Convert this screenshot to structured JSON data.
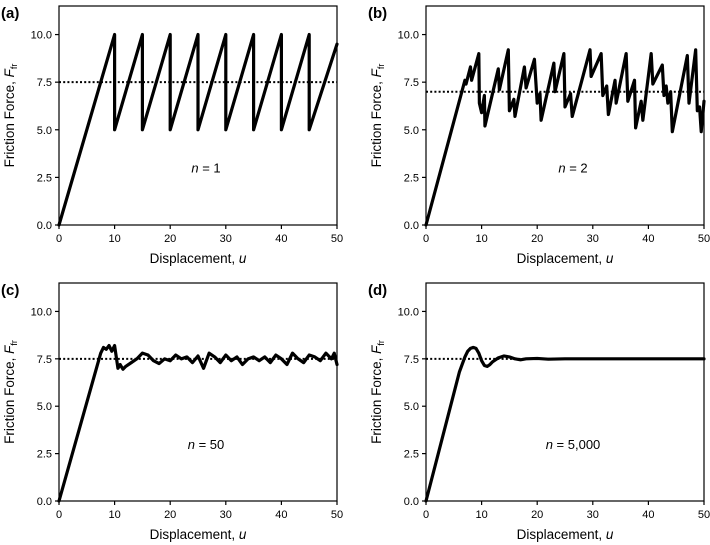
{
  "chart_data": [
    {
      "type": "line",
      "panel_label": "(a)",
      "annotation": {
        "prefix": "n",
        "text": " = 1"
      },
      "xlabel": "Displacement, ",
      "xlabel_var": "u",
      "ylabel": "Friction Force, ",
      "ylabel_var": "F",
      "ylabel_sub": "fr",
      "xlim": [
        0,
        50
      ],
      "ylim": [
        0,
        11.5
      ],
      "xticks": [
        0,
        10,
        20,
        30,
        40,
        50
      ],
      "yticks": [
        "0.0",
        "2.5",
        "5.0",
        "7.5",
        "10.0"
      ],
      "reference_line": 7.5,
      "series": [
        {
          "name": "n = 1",
          "x": [
            0,
            10,
            10,
            15,
            15,
            20,
            20,
            25,
            25,
            30,
            30,
            35,
            35,
            40,
            40,
            45,
            45,
            50
          ],
          "y": [
            0,
            10,
            5,
            10,
            5,
            10,
            5,
            10,
            5,
            10,
            5,
            10,
            5,
            10,
            5,
            10,
            5,
            9.5
          ]
        }
      ]
    },
    {
      "type": "line",
      "panel_label": "(b)",
      "annotation": {
        "prefix": "n",
        "text": " = 2"
      },
      "xlabel": "Displacement, ",
      "xlabel_var": "u",
      "ylabel": "Friction Force, ",
      "ylabel_var": "F",
      "ylabel_sub": "fr",
      "xlim": [
        0,
        50
      ],
      "ylim": [
        0,
        11.5
      ],
      "xticks": [
        0,
        10,
        20,
        30,
        40,
        50
      ],
      "yticks": [
        "0.0",
        "2.5",
        "5.0",
        "7.5",
        "10.0"
      ],
      "reference_line": 7.0,
      "series": [
        {
          "name": "n = 2",
          "x": [
            0,
            7,
            7.2,
            8,
            8.2,
            9.5,
            9.6,
            10,
            10.5,
            10.6,
            13,
            13.2,
            14.8,
            15,
            15.8,
            16,
            17.7,
            18,
            19.5,
            20,
            20.5,
            20.7,
            23,
            23.2,
            24.8,
            25,
            26,
            26.3,
            29.5,
            29.7,
            31.5,
            31.8,
            32.5,
            32.8,
            34,
            34.2,
            36,
            36.3,
            37.5,
            37.7,
            38.7,
            39,
            40.5,
            40.8,
            42.5,
            42.8,
            43.2,
            43.5,
            44,
            44.3,
            47,
            47.3,
            48.5,
            48.8,
            49.2,
            49.5,
            50
          ],
          "y": [
            0,
            7.6,
            7.4,
            8.3,
            7.6,
            9.0,
            6.4,
            5.9,
            6.8,
            5.2,
            8.2,
            7.1,
            9.2,
            6.0,
            6.6,
            5.7,
            8.3,
            7.2,
            8.7,
            6.4,
            6.9,
            5.5,
            8.5,
            7.0,
            9.0,
            6.2,
            6.9,
            5.7,
            9.2,
            7.8,
            9.0,
            6.8,
            7.3,
            5.8,
            7.6,
            6.4,
            9.0,
            6.5,
            7.6,
            5.1,
            6.5,
            5.5,
            9.0,
            7.4,
            8.4,
            6.8,
            7.3,
            6.4,
            7.0,
            4.9,
            8.9,
            6.4,
            9.2,
            6.0,
            6.2,
            4.9,
            6.5
          ]
        }
      ]
    },
    {
      "type": "line",
      "panel_label": "(c)",
      "annotation": {
        "prefix": "n",
        "text": " = 50"
      },
      "xlabel": "Displacement, ",
      "xlabel_var": "u",
      "ylabel": "Friction Force, ",
      "ylabel_var": "F",
      "ylabel_sub": "fr",
      "xlim": [
        0,
        50
      ],
      "ylim": [
        0,
        11.5
      ],
      "xticks": [
        0,
        10,
        20,
        30,
        40,
        50
      ],
      "yticks": [
        "0.0",
        "2.5",
        "5.0",
        "7.5",
        "10.0"
      ],
      "reference_line": 7.5,
      "series": [
        {
          "name": "n = 50",
          "x": [
            0,
            7.5,
            8,
            8.5,
            9,
            9.5,
            10,
            10.3,
            10.6,
            11,
            11.5,
            12,
            13,
            14,
            15,
            16,
            17,
            18,
            19,
            20,
            21,
            22,
            23,
            24,
            25,
            26,
            27,
            28,
            29,
            30,
            31,
            32,
            33,
            34,
            35,
            36,
            37,
            38,
            39,
            40,
            41,
            42,
            43,
            44,
            45,
            46,
            47,
            48,
            49,
            49.5,
            50
          ],
          "y": [
            0,
            7.8,
            8.1,
            8.0,
            8.2,
            7.9,
            8.2,
            7.6,
            7.0,
            7.2,
            6.95,
            7.1,
            7.3,
            7.5,
            7.8,
            7.7,
            7.4,
            7.25,
            7.5,
            7.4,
            7.7,
            7.5,
            7.6,
            7.3,
            7.65,
            7.0,
            7.8,
            7.6,
            7.3,
            7.7,
            7.4,
            7.6,
            7.2,
            7.5,
            7.6,
            7.4,
            7.6,
            7.3,
            7.7,
            7.5,
            7.2,
            7.8,
            7.5,
            7.3,
            7.7,
            7.6,
            7.4,
            7.8,
            7.5,
            7.8,
            7.2
          ]
        }
      ]
    },
    {
      "type": "line",
      "panel_label": "(d)",
      "annotation": {
        "prefix": "n",
        "text": " = 5,000"
      },
      "xlabel": "Displacement, ",
      "xlabel_var": "u",
      "ylabel": "Friction Force, ",
      "ylabel_var": "F",
      "ylabel_sub": "fr",
      "xlim": [
        0,
        50
      ],
      "ylim": [
        0,
        11.5
      ],
      "xticks": [
        0,
        10,
        20,
        30,
        40,
        50
      ],
      "yticks": [
        "0.0",
        "2.5",
        "5.0",
        "7.5",
        "10.0"
      ],
      "reference_line": 7.5,
      "series": [
        {
          "name": "n = 5,000",
          "x": [
            0,
            6,
            7,
            7.5,
            8,
            8.5,
            9,
            9.5,
            10,
            10.5,
            11,
            11.5,
            12,
            13,
            14,
            15,
            16,
            17,
            18,
            20,
            22,
            25,
            30,
            35,
            40,
            45,
            50
          ],
          "y": [
            0,
            6.8,
            7.6,
            7.9,
            8.05,
            8.1,
            8.05,
            7.8,
            7.4,
            7.15,
            7.1,
            7.2,
            7.35,
            7.55,
            7.65,
            7.6,
            7.5,
            7.45,
            7.5,
            7.52,
            7.48,
            7.5,
            7.5,
            7.5,
            7.5,
            7.5,
            7.5
          ]
        }
      ]
    }
  ]
}
